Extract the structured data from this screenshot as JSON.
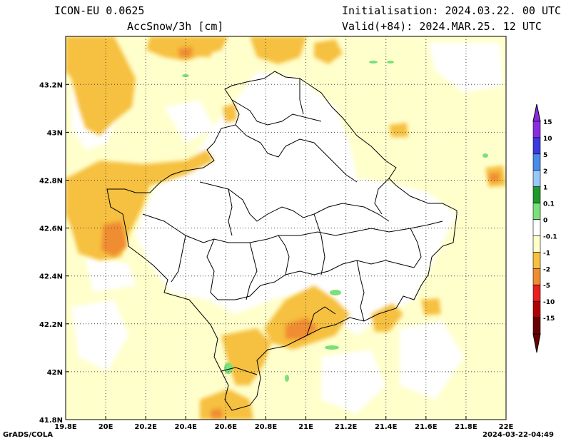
{
  "header": {
    "model": "ICON-EU 0.0625",
    "variable": "AccSnow/3h [cm]",
    "init": "Initialisation: 2024.03.22. 00 UTC",
    "valid": "Valid(+84): 2024.MAR.25. 12 UTC"
  },
  "footer": {
    "credit": "GrADS/COLA",
    "timestamp": "2024-03-22-04:49"
  },
  "map": {
    "lon_ticks": [
      "19.8E",
      "20E",
      "20.2E",
      "20.4E",
      "20.6E",
      "20.8E",
      "21E",
      "21.2E",
      "21.4E",
      "21.6E",
      "21.8E",
      "22E"
    ],
    "lat_ticks": [
      "41.8N",
      "42N",
      "42.2N",
      "42.4N",
      "42.6N",
      "42.8N",
      "43N",
      "43.2N"
    ],
    "grid": true
  },
  "legend": {
    "levels": [
      {
        "label": "15",
        "color": "#8a2be2"
      },
      {
        "label": "10",
        "color": "#3a3ae0"
      },
      {
        "label": "5",
        "color": "#4a8ae8"
      },
      {
        "label": "2",
        "color": "#98c8f8"
      },
      {
        "label": "1",
        "color": "#1f9a2a"
      },
      {
        "label": "0.1",
        "color": "#7ae07a"
      },
      {
        "label": "0",
        "color": "#ffffff"
      },
      {
        "label": "-0.1",
        "color": "#ffffcc"
      },
      {
        "label": "-1",
        "color": "#f6c040"
      },
      {
        "label": "-2",
        "color": "#f08c30"
      },
      {
        "label": "-5",
        "color": "#e82020"
      },
      {
        "label": "-10",
        "color": "#b00000"
      },
      {
        "label": "-15",
        "color": "#6a0000"
      }
    ]
  }
}
